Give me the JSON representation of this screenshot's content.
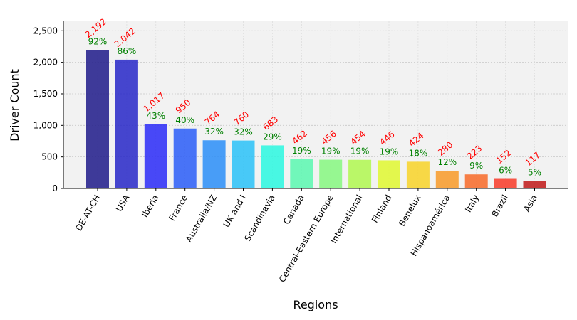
{
  "chart_data": {
    "type": "bar",
    "xlabel": "Regions",
    "ylabel": "Driver Count",
    "ylim": [
      0,
      2650
    ],
    "yticks": [
      0,
      500,
      1000,
      1500,
      2000,
      2500
    ],
    "ytick_labels": [
      "0",
      "500",
      "1,000",
      "1,500",
      "2,000",
      "2,500"
    ],
    "grid": true,
    "categories": [
      "DE-AT-CH",
      "USA",
      "Iberia",
      "France",
      "Australia/NZ",
      "UK and I",
      "Scandinavia",
      "Canada",
      "Central-Eastern Europe",
      "International",
      "Finland",
      "Benelux",
      "Hispanoamérica",
      "Italy",
      "Brazil",
      "Asia"
    ],
    "values": [
      2192,
      2042,
      1017,
      950,
      764,
      760,
      683,
      462,
      456,
      454,
      446,
      424,
      280,
      223,
      152,
      117
    ],
    "value_labels": [
      "2,192",
      "2,042",
      "1,017",
      "950",
      "764",
      "760",
      "683",
      "462",
      "456",
      "454",
      "446",
      "424",
      "280",
      "223",
      "152",
      "117"
    ],
    "percent_labels": [
      "92%",
      "86%",
      "43%",
      "40%",
      "32%",
      "32%",
      "29%",
      "19%",
      "19%",
      "19%",
      "19%",
      "18%",
      "12%",
      "9%",
      "6%",
      "5%"
    ],
    "colors": [
      "#1f1a8a",
      "#2727c8",
      "#2a2af8",
      "#2a5df8",
      "#2a8ef8",
      "#2ac2f8",
      "#2af8e0",
      "#5af8b0",
      "#86f880",
      "#b0f850",
      "#e0f830",
      "#f8d428",
      "#f89a28",
      "#f86a28",
      "#f83a28",
      "#c01818"
    ],
    "value_label_color": "#ff0000",
    "percent_label_color": "#008000"
  }
}
